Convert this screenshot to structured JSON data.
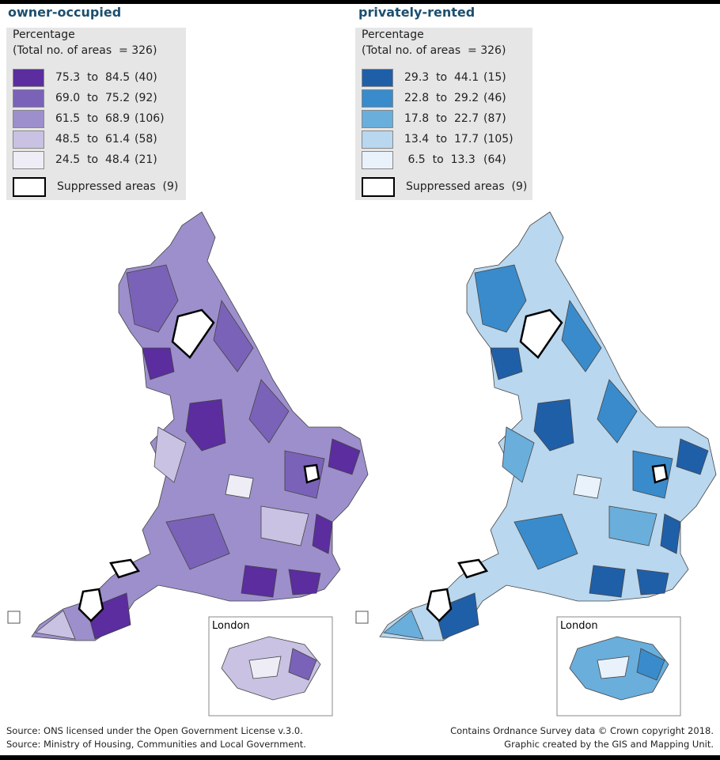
{
  "left": {
    "title": "owner-occupied",
    "legend_heading": [
      "Percentage",
      "(Total no. of areas  = 326)"
    ],
    "classes": [
      {
        "range": "75.3  to  84.5",
        "count": "(40)"
      },
      {
        "range": "69.0  to  75.2",
        "count": "(92)"
      },
      {
        "range": "61.5  to  68.9",
        "count": "(106)"
      },
      {
        "range": "48.5  to  61.4",
        "count": "(58)"
      },
      {
        "range": "24.5  to  48.4",
        "count": "(21)"
      }
    ],
    "suppressed": "Suppressed areas  (9)",
    "inset_label": "London"
  },
  "right": {
    "title": "privately-rented",
    "legend_heading": [
      "Percentage",
      "(Total no. of areas  = 326)"
    ],
    "classes": [
      {
        "range": "29.3  to  44.1",
        "count": "(15)"
      },
      {
        "range": "22.8  to  29.2",
        "count": "(46)"
      },
      {
        "range": "17.8  to  22.7",
        "count": "(87)"
      },
      {
        "range": "13.4  to  17.7",
        "count": "(105)"
      },
      {
        "range": " 6.5  to  13.3",
        "count": "(64)"
      }
    ],
    "suppressed": "Suppressed areas  (9)",
    "inset_label": "London"
  },
  "footer": {
    "left": [
      "Source: ONS licensed under the Open Government License v.3.0.",
      "Source: Ministry of Housing, Communities and Local Government."
    ],
    "right": [
      "Contains Ordnance Survey data © Crown copyright 2018.",
      "Graphic created by the GIS and Mapping Unit."
    ]
  }
}
